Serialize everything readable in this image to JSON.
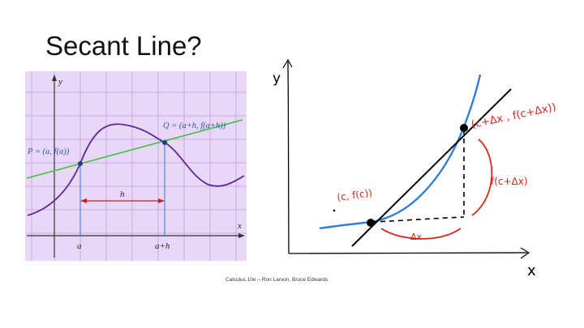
{
  "slide": {
    "title": "Secant Line?",
    "caption": "Calculus 10e – Ron Larson, Bruce Edwards"
  },
  "textbook_figure": {
    "y_label": "y",
    "x_label": "x",
    "point_p": "P = (a, f(a))",
    "point_q": "Q = (a+h, f(a+h))",
    "h_label": "h",
    "a_tick": "a",
    "a_plus_h_tick": "a+h",
    "colors": {
      "background": "#e9d7f7",
      "grid": "#c9a8e6",
      "curve": "#5b2a93",
      "secant": "#3cc23c",
      "verticals": "#4a8cc9",
      "h_arrow": "#cc2222"
    }
  },
  "hand_sketch": {
    "y_axis_label": "y",
    "x_axis_label": "x",
    "upper_point": "(c+Δx , f(c+Δx))",
    "lower_point": "(c, f(c))",
    "rise_label": "f(c+Δx)",
    "run_label": "Δx",
    "colors": {
      "curve": "#2f7fd8",
      "annotations": "#d8271c",
      "ink": "#000000"
    }
  }
}
